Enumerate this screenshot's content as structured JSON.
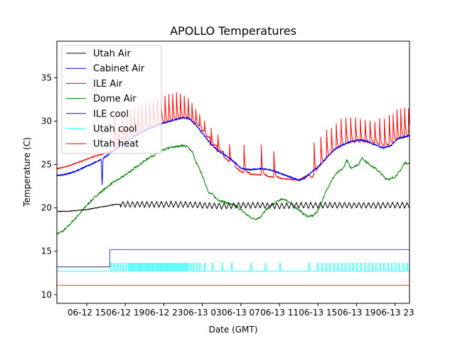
{
  "chart_data": {
    "type": "line",
    "title": "APOLLO Temperatures",
    "xlabel": "Date (GMT)",
    "ylabel": "Temperature (C)",
    "x_units": "hours since 06-12 00:00 GMT",
    "xlim": [
      11.9,
      48.5
    ],
    "ylim": [
      9.0,
      39.2
    ],
    "grid": false,
    "legend_position": "top-left",
    "xticks": [
      {
        "value": 15,
        "label": "06-12 15"
      },
      {
        "value": 19,
        "label": "06-12 19"
      },
      {
        "value": 23,
        "label": "06-12 23"
      },
      {
        "value": 27,
        "label": "06-13 03"
      },
      {
        "value": 31,
        "label": "06-13 07"
      },
      {
        "value": 35,
        "label": "06-13 11"
      },
      {
        "value": 39,
        "label": "06-13 15"
      },
      {
        "value": 43,
        "label": "06-13 19"
      },
      {
        "value": 47,
        "label": "06-13 23"
      }
    ],
    "yticks": [
      {
        "value": 10,
        "label": "10"
      },
      {
        "value": 15,
        "label": "15"
      },
      {
        "value": 20,
        "label": "20"
      },
      {
        "value": 25,
        "label": "25"
      },
      {
        "value": 30,
        "label": "30"
      },
      {
        "value": 35,
        "label": "35"
      }
    ],
    "series": [
      {
        "name": "Utah Air",
        "color": "#000000",
        "kind": "oscillating",
        "x": [
          11.9,
          13.0,
          14.0,
          15.0,
          16.0,
          17.0,
          18.0,
          19.0,
          21.0,
          23.0,
          25.0,
          27.0,
          29.0,
          31.0,
          33.0,
          35.0,
          37.0,
          39.0,
          41.0,
          43.0,
          45.0,
          47.0,
          48.5
        ],
        "y": [
          19.6,
          19.6,
          19.7,
          19.8,
          20.0,
          20.2,
          20.4,
          20.4,
          20.4,
          20.4,
          20.4,
          20.3,
          20.2,
          20.3,
          20.3,
          20.2,
          20.3,
          20.3,
          20.3,
          20.3,
          20.3,
          20.3,
          20.3
        ],
        "oscillation": {
          "start": 18.5,
          "amplitude": 0.35,
          "period_hours": 0.5
        }
      },
      {
        "name": "Cabinet Air",
        "color": "#0000ff",
        "kind": "line",
        "x": [
          11.9,
          13.0,
          14.0,
          15.0,
          16.0,
          16.5,
          16.6,
          16.7,
          17.8,
          19.0,
          20.8,
          23.0,
          25.0,
          25.6,
          26.3,
          27.0,
          27.8,
          28.6,
          29.6,
          30.4,
          31.1,
          32.0,
          33.0,
          34.0,
          34.8,
          36.0,
          37.0,
          37.6,
          38.3,
          39.2,
          40.0,
          40.7,
          41.4,
          42.1,
          43.0,
          43.7,
          44.4,
          45.1,
          45.8,
          46.6,
          47.3,
          48.5
        ],
        "y": [
          23.7,
          23.9,
          24.3,
          24.8,
          25.3,
          25.6,
          22.6,
          25.7,
          26.6,
          27.6,
          28.8,
          29.8,
          30.4,
          30.3,
          29.6,
          28.6,
          27.5,
          26.6,
          25.9,
          25.2,
          24.5,
          24.4,
          24.5,
          24.4,
          24.1,
          23.6,
          23.2,
          23.4,
          24.1,
          24.9,
          25.9,
          26.7,
          27.2,
          27.5,
          27.8,
          27.8,
          27.5,
          27.2,
          26.9,
          27.2,
          28.0,
          28.3
        ]
      },
      {
        "name": "ILE Air",
        "color": "#ff0000",
        "kind": "baseline_with_spikes",
        "x": [
          11.9,
          13.0,
          14.0,
          15.0,
          16.0,
          17.0,
          17.8,
          19.0,
          20.8,
          23.0,
          25.0,
          26.3,
          27.8,
          29.6,
          31.1,
          32.0,
          33.0,
          34.0,
          35.0,
          36.0,
          37.0,
          38.0,
          38.4,
          39.2,
          40.7,
          42.1,
          43.0,
          44.4,
          45.8,
          47.3,
          48.5
        ],
        "y": [
          24.5,
          24.8,
          25.2,
          25.6,
          26.0,
          26.3,
          26.6,
          27.6,
          28.8,
          29.8,
          30.4,
          29.4,
          27.3,
          25.5,
          24.1,
          23.9,
          23.8,
          23.6,
          23.4,
          23.3,
          23.2,
          23.8,
          23.5,
          25.0,
          26.7,
          27.5,
          27.6,
          27.5,
          27.0,
          28.0,
          28.3
        ],
        "spikes": {
          "times": [
            17.9,
            18.3,
            18.7,
            19.1,
            19.5,
            19.9,
            20.3,
            20.7,
            21.1,
            21.5,
            21.9,
            22.3,
            22.7,
            23.1,
            23.5,
            23.9,
            24.3,
            24.7,
            25.1,
            25.5,
            25.9,
            26.3,
            26.7,
            27.2,
            27.9,
            28.6,
            29.8,
            31.3,
            33.1,
            34.4,
            38.6,
            39.3,
            39.9,
            40.4,
            40.9,
            41.4,
            41.9,
            42.4,
            42.9,
            43.4,
            43.9,
            44.4,
            44.9,
            45.4,
            45.9,
            46.4,
            46.8,
            47.2,
            47.6,
            48.0,
            48.4
          ],
          "peaks": [
            31.8,
            30.2,
            31.9,
            31.2,
            32.1,
            32.3,
            32.5,
            32.7,
            32.8,
            33.0,
            33.2,
            33.3,
            33.5,
            33.7,
            33.8,
            33.9,
            34.0,
            33.9,
            33.6,
            33.2,
            32.6,
            31.9,
            31.3,
            30.5,
            29.6,
            28.8,
            27.8,
            28.0,
            28.0,
            27.2,
            27.5,
            28.2,
            28.9,
            29.2,
            29.7,
            30.2,
            30.3,
            30.4,
            30.4,
            30.2,
            30.1,
            30.0,
            29.9,
            30.3,
            30.2,
            30.7,
            30.8,
            31.3,
            31.4,
            31.5,
            31.4
          ]
        }
      },
      {
        "name": "Dome Air",
        "color": "#008000",
        "kind": "line",
        "x": [
          11.9,
          12.5,
          13.0,
          14.0,
          15.0,
          16.0,
          17.0,
          17.7,
          18.5,
          19.5,
          20.5,
          21.5,
          22.5,
          23.5,
          24.5,
          25.0,
          25.5,
          26.0,
          26.3,
          26.6,
          26.9,
          27.3,
          27.7,
          28.0,
          28.4,
          28.9,
          29.5,
          30.0,
          30.5,
          31.0,
          31.5,
          32.0,
          32.5,
          33.0,
          33.5,
          34.0,
          34.5,
          35.0,
          35.5,
          36.0,
          36.5,
          37.0,
          37.5,
          38.0,
          38.5,
          39.0,
          39.5,
          40.0,
          40.4,
          40.8,
          41.2,
          41.6,
          42.0,
          42.4,
          42.8,
          43.2,
          43.6,
          44.0,
          44.5,
          45.0,
          45.5,
          46.0,
          46.5,
          47.0,
          47.5,
          48.0,
          48.5
        ],
        "y": [
          17.0,
          17.3,
          17.8,
          19.0,
          20.3,
          21.4,
          22.3,
          22.9,
          23.4,
          24.2,
          25.0,
          25.8,
          26.4,
          26.9,
          27.1,
          27.2,
          27.0,
          26.4,
          25.3,
          24.7,
          24.0,
          22.8,
          21.7,
          21.6,
          21.1,
          20.8,
          20.6,
          20.4,
          20.2,
          19.8,
          19.3,
          18.9,
          18.7,
          18.9,
          19.6,
          20.2,
          20.5,
          20.9,
          21.0,
          20.7,
          20.2,
          19.8,
          19.3,
          19.0,
          19.1,
          19.7,
          21.0,
          22.3,
          23.1,
          23.8,
          24.2,
          24.5,
          25.5,
          24.6,
          24.8,
          25.0,
          25.8,
          25.3,
          24.9,
          24.5,
          24.0,
          23.4,
          23.3,
          23.6,
          24.2,
          25.2,
          25.1
        ]
      },
      {
        "name": "ILE cool",
        "color": "#191970",
        "kind": "step",
        "x": [
          11.9,
          17.4,
          17.4,
          48.5
        ],
        "y": [
          13.2,
          13.2,
          15.2,
          15.2
        ]
      },
      {
        "name": "Utah cool",
        "color": "#00ffff",
        "kind": "pulses",
        "base": 12.7,
        "high": 13.6,
        "pulse_times": [
          17.5,
          17.8,
          18.1,
          18.4,
          18.7,
          19.0,
          19.3,
          19.5,
          19.7,
          19.9,
          20.1,
          20.3,
          20.5,
          20.7,
          20.9,
          21.1,
          21.3,
          21.5,
          21.7,
          21.9,
          22.1,
          22.3,
          22.5,
          22.7,
          22.9,
          23.1,
          23.3,
          23.5,
          23.7,
          23.9,
          24.1,
          24.3,
          24.5,
          24.7,
          24.9,
          25.1,
          25.3,
          25.5,
          25.8,
          26.1,
          26.4,
          26.7,
          27.2,
          28.0,
          29.0,
          30.0,
          32.0,
          33.5,
          35.0,
          38.0,
          38.9,
          39.4,
          39.8,
          40.2,
          40.6,
          41.0,
          41.4,
          41.8,
          42.2,
          42.6,
          43.0,
          43.4,
          43.8,
          44.2,
          44.6,
          45.0,
          45.4,
          45.8,
          46.2,
          46.6,
          47.0,
          47.4,
          47.8,
          48.2
        ],
        "pulse_width_hours": 0.12
      },
      {
        "name": "Utah heat",
        "color": "#ff0000",
        "kind": "line",
        "x": [
          11.9,
          48.5
        ],
        "y": [
          11.1,
          11.1
        ]
      }
    ]
  }
}
